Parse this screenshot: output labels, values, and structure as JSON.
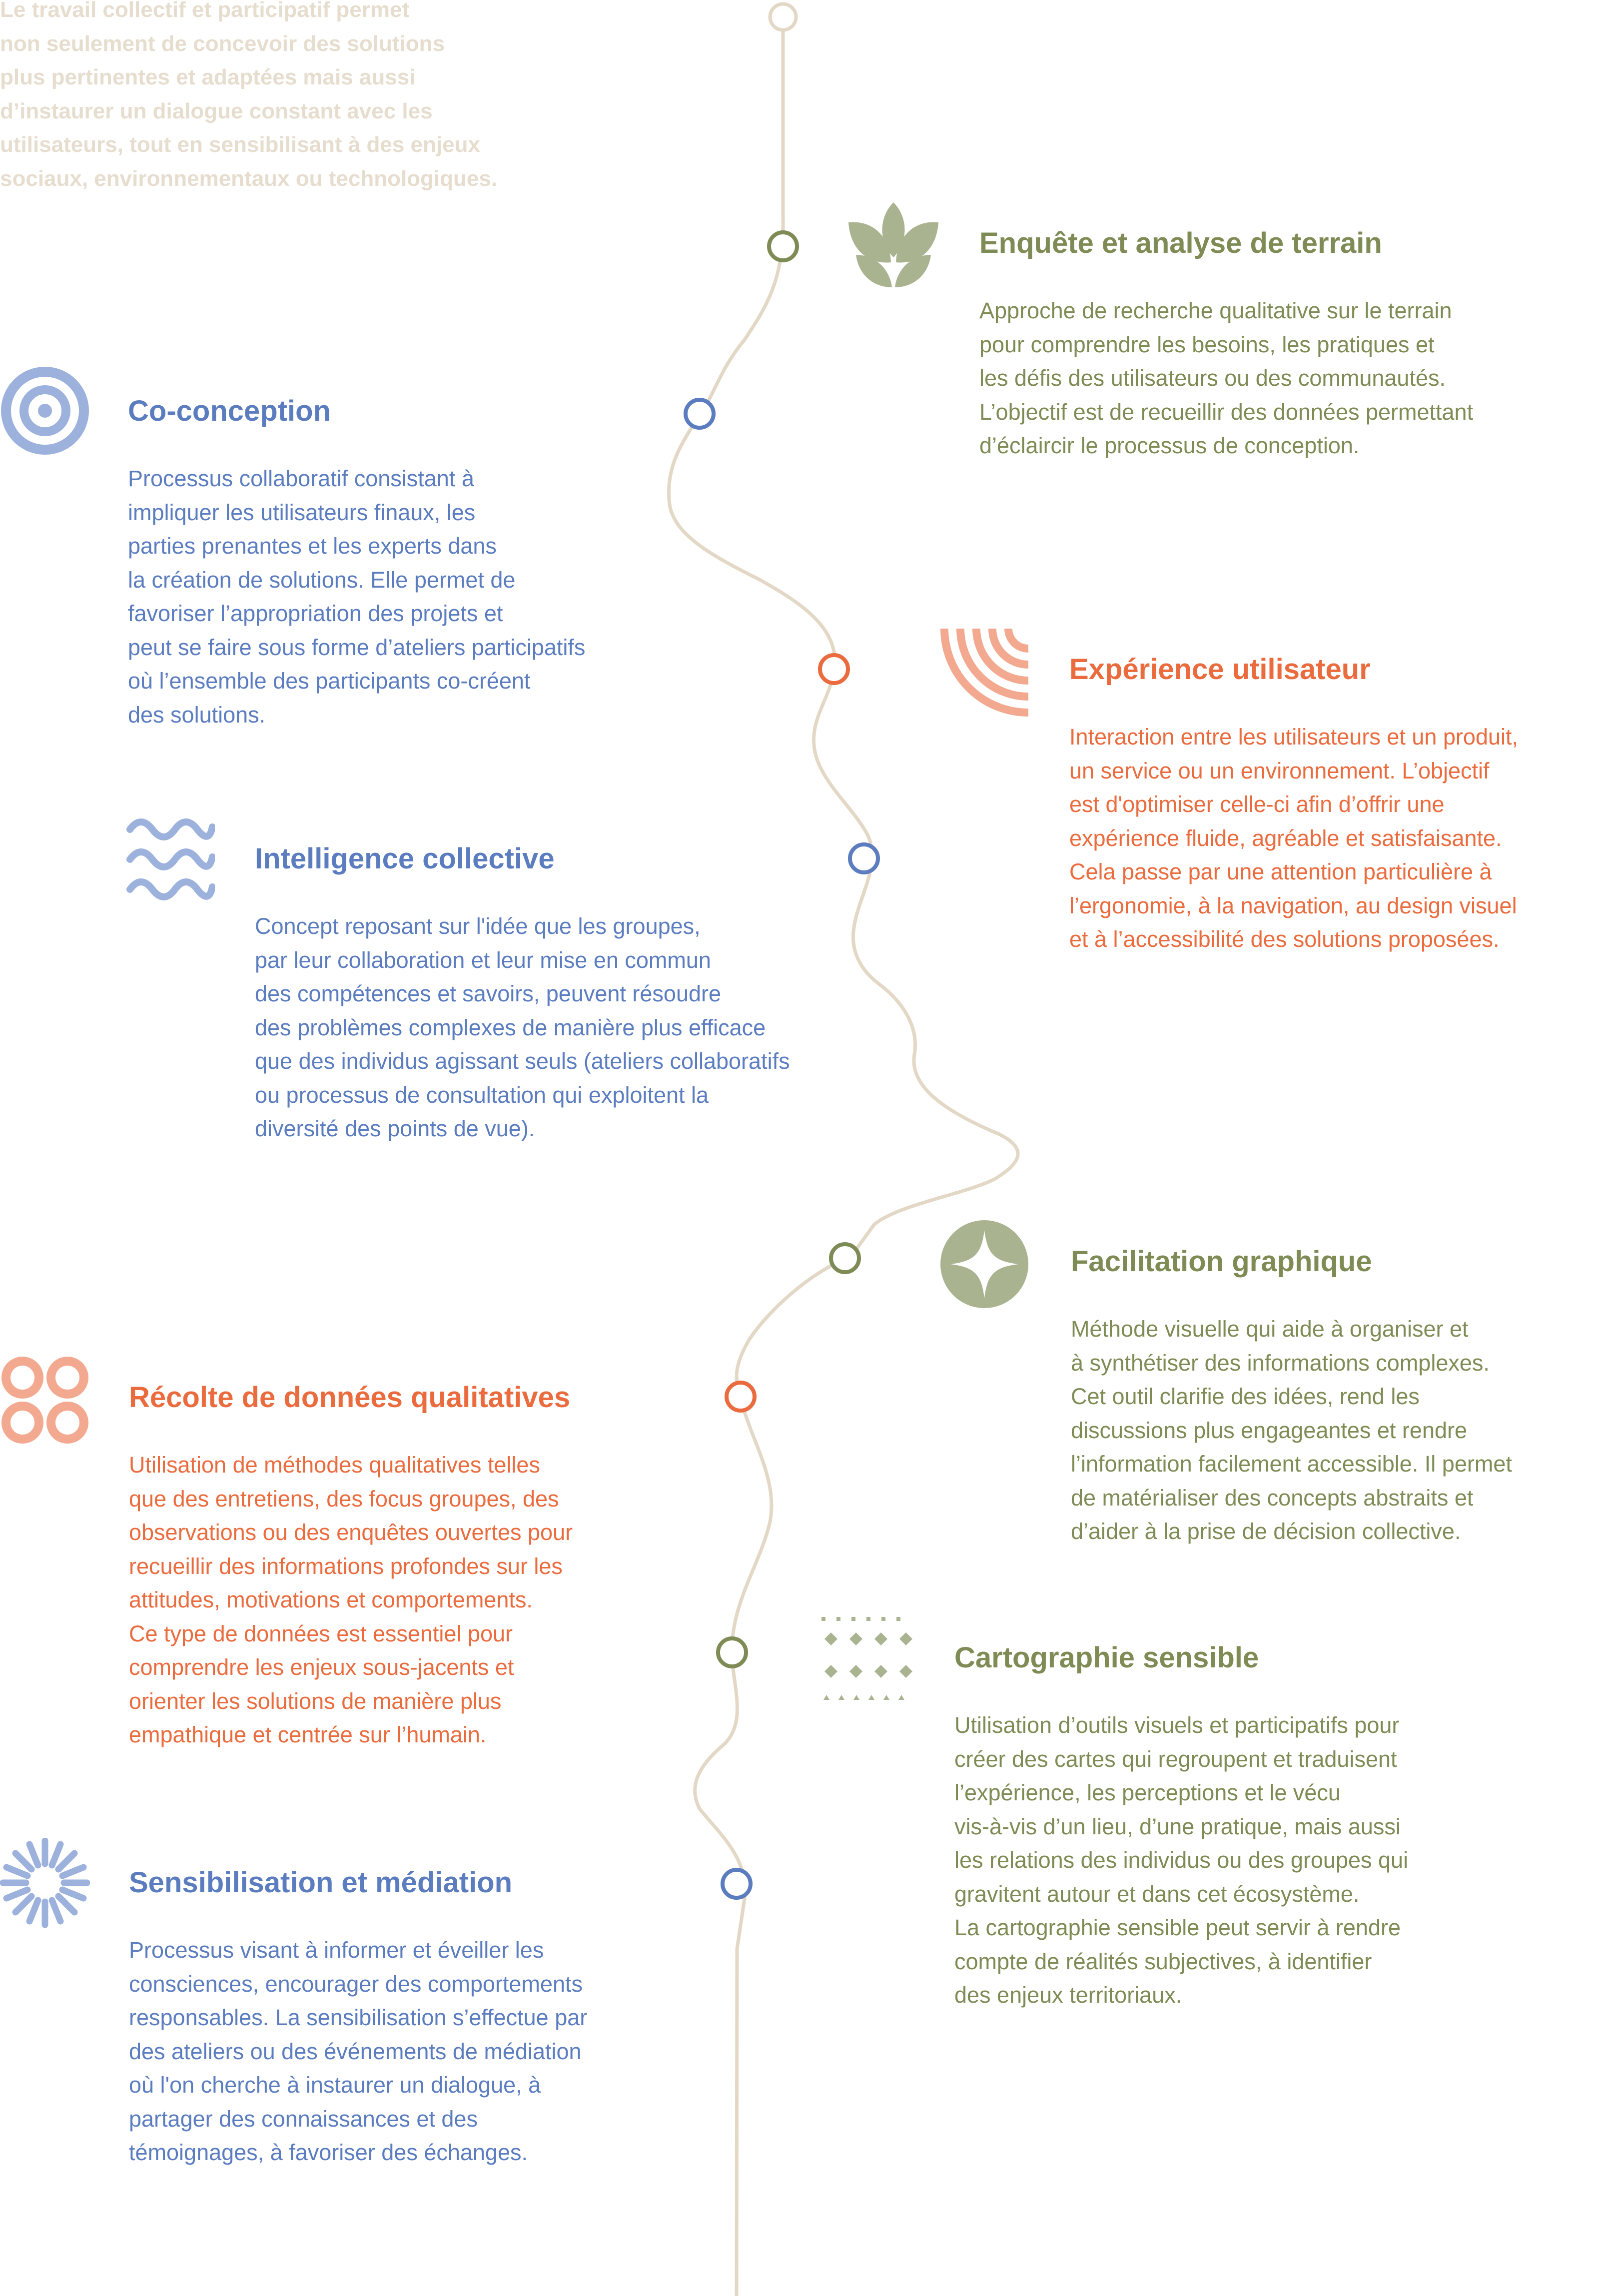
{
  "intro": {
    "text": "Le travail collectif et participatif permet\nnon seulement de concevoir des solutions\nplus pertinentes et adaptées mais aussi\nd’instaurer un dialogue constant avec les\nutilisateurs, tout en sensibilisant à des enjeux\nsociaux, environnementaux ou technologiques."
  },
  "colors": {
    "line": "#e3d8c6",
    "green": "#7f8b55",
    "green_icon": "#a9b38f",
    "blue": "#5b7dc0",
    "blue_icon": "#9db1dd",
    "orange": "#ea6b3d",
    "orange_icon": "#f2a98f"
  },
  "items": [
    {
      "id": "enquete",
      "side": "right",
      "color": "green",
      "icon": "leaves-icon",
      "title": "Enquête et analyse de terrain",
      "text": "Approche de recherche qualitative sur le terrain\npour comprendre les besoins, les pratiques et\nles défis des utilisateurs ou des communautés.\nL’objectif est de recueillir des données permettant\nd’éclaircir le processus de conception."
    },
    {
      "id": "coconception",
      "side": "left",
      "color": "blue",
      "icon": "target-icon",
      "title": "Co-conception",
      "text": "Processus collaboratif consistant à\nimpliquer les utilisateurs finaux, les\nparties prenantes et les experts dans\nla création de solutions. Elle permet de\nfavoriser l’appropriation des projets et\npeut se faire sous forme d’ateliers participatifs\noù l’ensemble des participants co-créent\ndes solutions."
    },
    {
      "id": "experience",
      "side": "right",
      "color": "orange",
      "icon": "arcs-icon",
      "title": "Expérience utilisateur",
      "text": "Interaction entre les utilisateurs et un produit,\nun service ou un environnement. L’objectif\nest d'optimiser celle-ci afin d’offrir une\nexpérience fluide, agréable et satisfaisante.\nCela passe par une attention particulière à\nl’ergonomie, à la navigation, au design visuel\net à l’accessibilité des solutions proposées."
    },
    {
      "id": "intelligence",
      "side": "left",
      "color": "blue",
      "icon": "waves-icon",
      "title": "Intelligence collective",
      "text": "Concept reposant sur l'idée que les groupes,\npar leur collaboration et leur mise en commun\ndes compétences et savoirs, peuvent résoudre\ndes problèmes complexes de manière plus efficace\nque des individus agissant seuls (ateliers collaboratifs\nou processus de consultation qui exploitent la\ndiversité des points de vue)."
    },
    {
      "id": "facilitation",
      "side": "right",
      "color": "green",
      "icon": "star-circle-icon",
      "title": "Facilitation graphique",
      "text": "Méthode visuelle qui aide à organiser et\nà synthétiser des informations complexes.\nCet outil clarifie des idées, rend les\ndiscussions plus engageantes et rendre\nl’information facilement accessible. Il permet\nde matérialiser des concepts abstraits et\nd’aider à la prise de décision collective."
    },
    {
      "id": "recolte",
      "side": "left",
      "color": "orange",
      "icon": "rings-icon",
      "title": "Récolte de données qualitatives",
      "text": "Utilisation de méthodes qualitatives telles\nque des entretiens, des focus groupes, des\nobservations ou des enquêtes ouvertes pour\nrecueillir des informations profondes sur les\nattitudes, motivations et comportements.\nCe type de données est essentiel pour\ncomprendre les enjeux sous-jacents et\norienter les solutions de manière plus\nempathique et centrée sur l’humain."
    },
    {
      "id": "cartographie",
      "side": "right",
      "color": "green",
      "icon": "dots-grid-icon",
      "title": "Cartographie sensible",
      "text": "Utilisation d’outils visuels et participatifs pour\ncréer des cartes qui regroupent et traduisent\nl’expérience, les perceptions et le vécu\nvis-à-vis d’un lieu, d’une pratique, mais aussi\nles relations des individus ou des groupes qui\ngravitent autour et dans cet écosystème.\nLa cartographie sensible peut servir à rendre\ncompte de réalités subjectives, à identifier\ndes enjeux territoriaux."
    },
    {
      "id": "sensibilisation",
      "side": "left",
      "color": "blue",
      "icon": "sunburst-icon",
      "title": "Sensibilisation et médiation",
      "text": "Processus visant à informer et éveiller les\nconsciences, encourager des comportements\nresponsables. La sensibilisation s’effectue par\ndes ateliers ou des événements de médiation\noù l'on cherche à instaurer un dialogue, à\npartager des connaissances et des\ntémoignages, à favoriser des échanges."
    }
  ]
}
